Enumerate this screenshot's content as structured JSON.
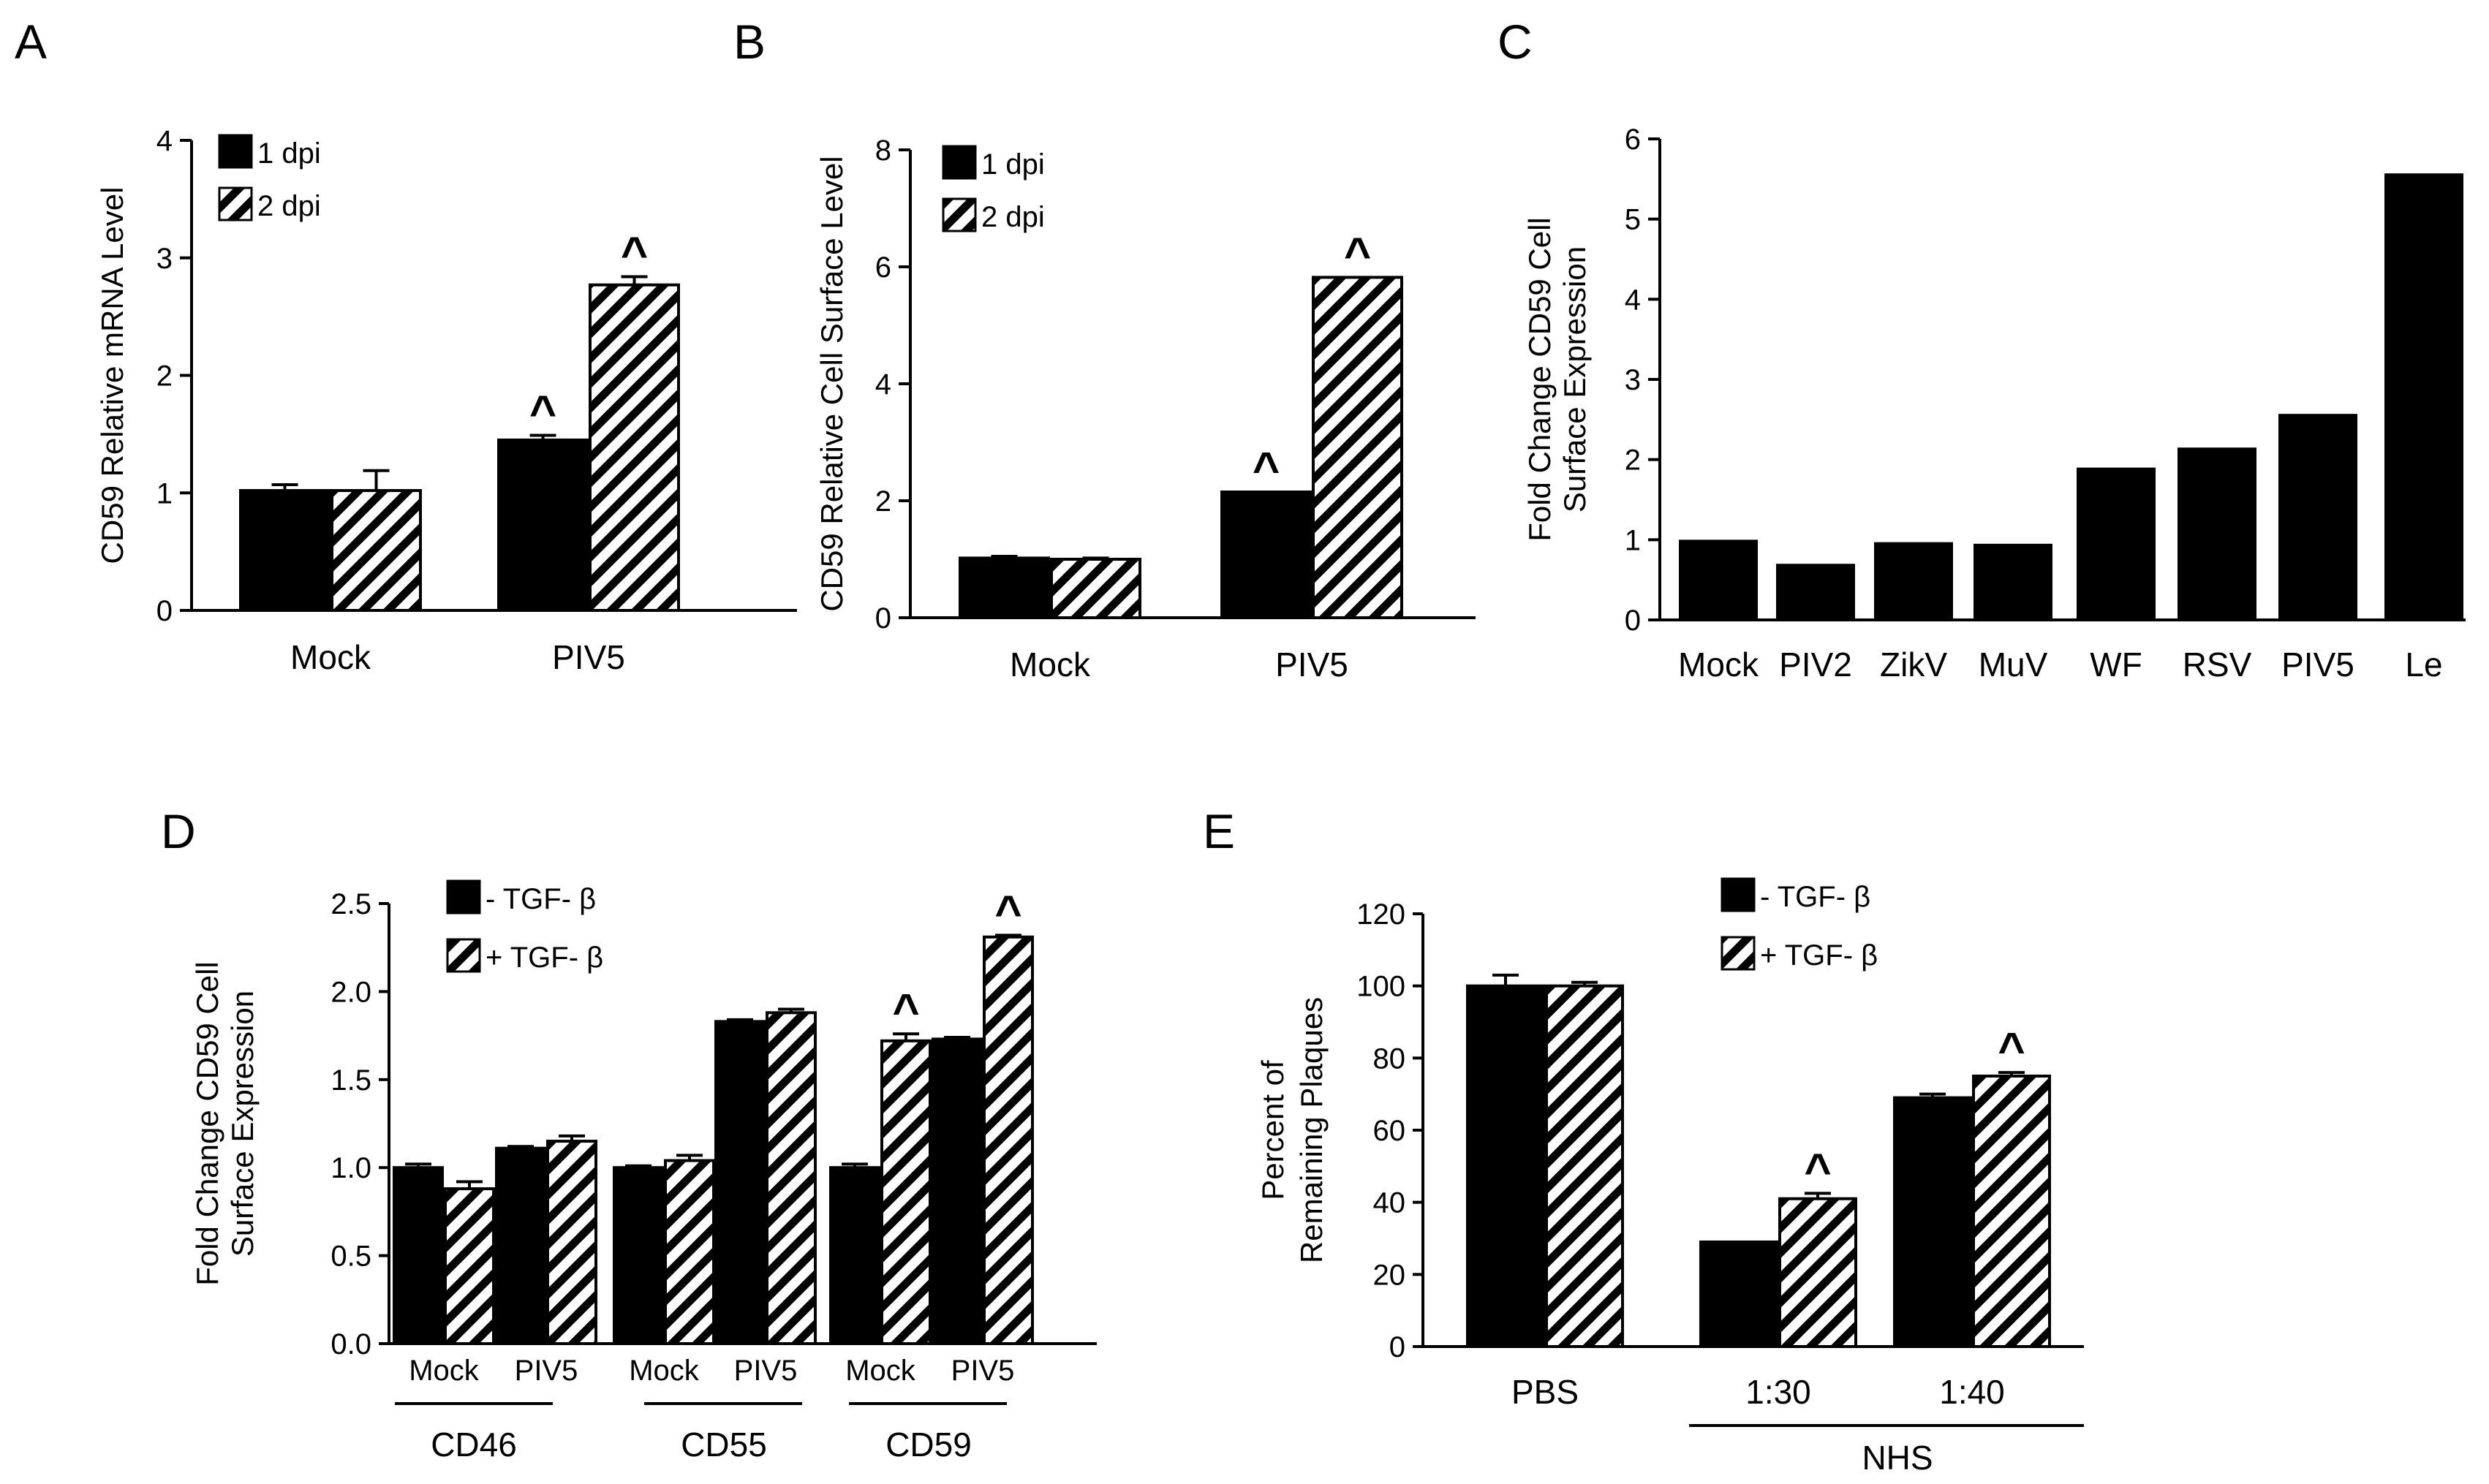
{
  "colors": {
    "ink": "#000000",
    "paper": "#ffffff"
  },
  "chart_data": [
    {
      "type": "bar",
      "panel": "A",
      "ylabel": "CD59 Relative mRNA Level",
      "ylim": [
        0,
        4
      ],
      "yticks": [
        "0",
        "1",
        "2",
        "3",
        "4"
      ],
      "categories": [
        "Mock",
        "PIV5"
      ],
      "series": [
        {
          "name": "1 dpi",
          "style": "solid",
          "values": [
            1.02,
            1.45
          ],
          "errors": [
            0.05,
            0.04
          ]
        },
        {
          "name": "2 dpi",
          "style": "hatch",
          "values": [
            1.02,
            2.77
          ],
          "errors": [
            0.17,
            0.07
          ]
        }
      ],
      "significance": [
        "",
        "^"
      ],
      "legend": "top-left"
    },
    {
      "type": "bar",
      "panel": "B",
      "ylabel": "CD59 Relative Cell Surface Level",
      "ylim": [
        0,
        8
      ],
      "yticks": [
        "0",
        "2",
        "4",
        "6",
        "8"
      ],
      "categories": [
        "Mock",
        "PIV5"
      ],
      "series": [
        {
          "name": "1 dpi",
          "style": "solid",
          "values": [
            1.02,
            2.15
          ],
          "errors": [
            0.03,
            0.0
          ]
        },
        {
          "name": "2 dpi",
          "style": "hatch",
          "values": [
            1.0,
            5.82
          ],
          "errors": [
            0.02,
            0.0
          ]
        }
      ],
      "significance": [
        "",
        "^"
      ],
      "legend": "top-left"
    },
    {
      "type": "bar",
      "panel": "C",
      "ylabel": "Fold Change CD59 Cell Surface Expression",
      "ylabel_lines": [
        "Fold Change CD59 Cell",
        "Surface Expression"
      ],
      "ylim": [
        0,
        6
      ],
      "yticks": [
        "0",
        "1",
        "2",
        "3",
        "4",
        "5",
        "6"
      ],
      "categories": [
        "Mock",
        "PIV2",
        "ZikV",
        "MuV",
        "WF",
        "RSV",
        "PIV5",
        "Le"
      ],
      "series": [
        {
          "name": "",
          "style": "solid",
          "values": [
            1.0,
            0.7,
            0.97,
            0.95,
            1.9,
            2.15,
            2.57,
            5.57
          ]
        }
      ]
    },
    {
      "type": "bar",
      "panel": "D",
      "ylabel": "Fold Change CD59 Cell Surface Expression",
      "ylabel_lines": [
        "Fold Change CD59 Cell",
        "Surface Expression"
      ],
      "ylim": [
        0,
        2.5
      ],
      "yticks": [
        "0.0",
        "0.5",
        "1.0",
        "1.5",
        "2.0",
        "2.5"
      ],
      "categories": [
        "Mock",
        "PIV5",
        "Mock",
        "PIV5",
        "Mock",
        "PIV5"
      ],
      "groups": [
        "CD46",
        "CD55",
        "CD59"
      ],
      "series": [
        {
          "name": "- TGF- β",
          "style": "solid",
          "values": [
            1.0,
            1.11,
            1.0,
            1.83,
            1.0,
            1.73
          ],
          "errors": [
            0.02,
            0.01,
            0.01,
            0.01,
            0.02,
            0.01
          ]
        },
        {
          "name": "+ TGF- β",
          "style": "hatch",
          "values": [
            0.88,
            1.15,
            1.04,
            1.88,
            1.72,
            2.31
          ],
          "errors": [
            0.04,
            0.03,
            0.03,
            0.02,
            0.04,
            0.01
          ]
        }
      ],
      "significance": [
        "",
        "",
        "",
        "",
        "^",
        "^"
      ],
      "legend": "top"
    },
    {
      "type": "bar",
      "panel": "E",
      "ylabel": "Percent of Remaining Plaques",
      "ylabel_lines": [
        "Percent of",
        "Remaining Plaques"
      ],
      "ylim": [
        0,
        120
      ],
      "yticks": [
        "0",
        "20",
        "40",
        "60",
        "80",
        "100",
        "120"
      ],
      "categories": [
        "PBS",
        "1:30",
        "1:40"
      ],
      "group_label": "NHS",
      "series": [
        {
          "name": "- TGF- β",
          "style": "solid",
          "values": [
            100,
            29,
            69
          ],
          "errors": [
            3,
            0,
            1
          ]
        },
        {
          "name": "+ TGF- β",
          "style": "hatch",
          "values": [
            100,
            41,
            75
          ],
          "errors": [
            1,
            1.5,
            1
          ]
        }
      ],
      "significance": [
        "",
        "^",
        "^"
      ],
      "legend": "top"
    }
  ]
}
